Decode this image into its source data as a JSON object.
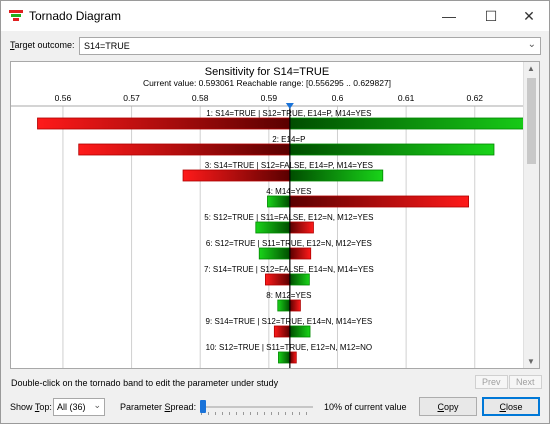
{
  "window": {
    "title": "Tornado Diagram",
    "minimize_glyph": "—",
    "maximize_glyph": "☐",
    "close_glyph": "✕"
  },
  "target": {
    "label_prefix": "T",
    "label_rest": "arget outcome:",
    "value": "S14=TRUE"
  },
  "chart_data": {
    "type": "bar",
    "title": "Sensitivity for S14=TRUE",
    "subtitle": "Current value: 0.593061  Reachable range: [0.556295 .. 0.629827]",
    "current_value": 0.593061,
    "reachable_range": [
      0.556295,
      0.629827
    ],
    "x_ticks": [
      "0.56",
      "0.57",
      "0.58",
      "0.59",
      "0.6",
      "0.61",
      "0.62"
    ],
    "x_tick_values": [
      0.56,
      0.57,
      0.58,
      0.59,
      0.6,
      0.61,
      0.62
    ],
    "xlim": [
      0.5536,
      0.6263
    ],
    "orientation": "horizontal",
    "colors": {
      "red": "#ff1a1a",
      "dark_red": "#5a0000",
      "green": "#19d419",
      "dark_green": "#004d00",
      "center_line": "#000000",
      "marker": "#1a73d9"
    },
    "bars": [
      {
        "label": "1: S14=TRUE | S12=TRUE, E14=P, M14=YES",
        "low": 0.556295,
        "high": 0.629827,
        "low_color": "red"
      },
      {
        "label": "2: E14=P",
        "low": 0.5623,
        "high": 0.6228,
        "low_color": "red"
      },
      {
        "label": "3: S14=TRUE | S12=FALSE, E14=P, M14=YES",
        "low": 0.5775,
        "high": 0.6066,
        "low_color": "red"
      },
      {
        "label": "4: M14=YES",
        "low": 0.5898,
        "high": 0.6191,
        "low_color": "green"
      },
      {
        "label": "5: S12=TRUE | S11=FALSE, E12=N, M12=YES",
        "low": 0.5881,
        "high": 0.5965,
        "low_color": "green"
      },
      {
        "label": "6: S12=TRUE | S11=TRUE, E12=N, M12=YES",
        "low": 0.5886,
        "high": 0.5961,
        "low_color": "green"
      },
      {
        "label": "7: S14=TRUE | S12=FALSE, E14=N, M14=YES",
        "low": 0.5895,
        "high": 0.5959,
        "low_color": "red"
      },
      {
        "label": "8: M12=YES",
        "low": 0.5913,
        "high": 0.5946,
        "low_color": "green"
      },
      {
        "label": "9: S14=TRUE | S12=TRUE, E14=N, M14=YES",
        "low": 0.5908,
        "high": 0.596,
        "low_color": "red"
      },
      {
        "label": "10: S12=TRUE | S11=TRUE, E12=N, M12=NO",
        "low": 0.5914,
        "high": 0.594,
        "low_color": "green"
      }
    ]
  },
  "hint": "Double-click on the tornado band to edit the parameter under study",
  "nav": {
    "prev": "Prev",
    "next": "Next"
  },
  "show_top": {
    "label_prefix": "Show ",
    "label_u": "T",
    "label_rest": "op:",
    "value": "All (36)"
  },
  "spread": {
    "label_prefix": "Parameter ",
    "label_u": "S",
    "label_rest": "pread:",
    "value": 0.1,
    "value_text": "10% of current value"
  },
  "buttons": {
    "copy_u": "C",
    "copy_rest": "opy",
    "close_u": "C",
    "close_rest": "lose"
  }
}
